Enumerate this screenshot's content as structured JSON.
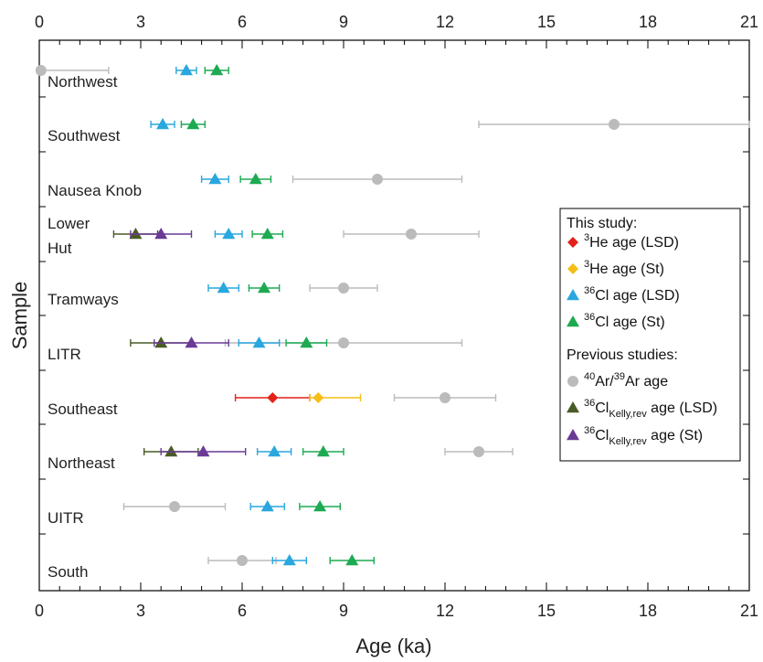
{
  "chart_data": {
    "type": "scatter",
    "xlabel": "Age (ka)",
    "ylabel": "Sample",
    "xlim": [
      0,
      21
    ],
    "xticks": [
      0,
      3,
      6,
      9,
      12,
      15,
      18,
      21
    ],
    "grid": false,
    "legend_placement": "right-center",
    "samples": [
      {
        "label": "Northwest",
        "label_lines": [
          "Northwest"
        ]
      },
      {
        "label": "Southwest",
        "label_lines": [
          "Southwest"
        ]
      },
      {
        "label": "Nausea Knob",
        "label_lines": [
          "Nausea Knob"
        ]
      },
      {
        "label": "Lower Hut",
        "label_lines": [
          "Lower",
          "Hut"
        ]
      },
      {
        "label": "Tramways",
        "label_lines": [
          "Tramways"
        ]
      },
      {
        "label": "LITR",
        "label_lines": [
          "LITR"
        ]
      },
      {
        "label": "Southeast",
        "label_lines": [
          "Southeast"
        ]
      },
      {
        "label": "Northeast",
        "label_lines": [
          "Northeast"
        ]
      },
      {
        "label": "UITR",
        "label_lines": [
          "UITR"
        ]
      },
      {
        "label": "South",
        "label_lines": [
          "South"
        ]
      }
    ],
    "legend": {
      "group1_title": "This study:",
      "group2_title": "Previous studies:",
      "entries": [
        {
          "key": "he_lsd",
          "sup": "3",
          "main": "He age (LSD)",
          "sub": "",
          "tail": ""
        },
        {
          "key": "he_st",
          "sup": "3",
          "main": "He age (St)",
          "sub": "",
          "tail": ""
        },
        {
          "key": "cl_lsd",
          "sup": "36",
          "main": "Cl age (LSD)",
          "sub": "",
          "tail": ""
        },
        {
          "key": "cl_st",
          "sup": "36",
          "main": "Cl age (St)",
          "sub": "",
          "tail": ""
        },
        {
          "key": "arar",
          "sup": "40",
          "main": "Ar/",
          "sup2": "39",
          "main2": "Ar age",
          "sub": "",
          "tail": ""
        },
        {
          "key": "kelly_lsd",
          "sup": "36",
          "main": "Cl",
          "sub": "Kelly,rev",
          "tail": " age (LSD)"
        },
        {
          "key": "kelly_st",
          "sup": "36",
          "main": "Cl",
          "sub": "Kelly,rev",
          "tail": " age (St)"
        }
      ]
    },
    "series": [
      {
        "key": "he_lsd",
        "marker": "diamond",
        "color": "#e32119",
        "points": [
          {
            "sample": "Southeast",
            "x": 6.9,
            "lo": 5.8,
            "hi": 8.0
          }
        ]
      },
      {
        "key": "he_st",
        "marker": "diamond",
        "color": "#f6bd16",
        "points": [
          {
            "sample": "Southeast",
            "x": 8.25,
            "lo": 8.0,
            "hi": 9.5
          }
        ]
      },
      {
        "key": "cl_lsd",
        "marker": "triangle",
        "color": "#29a7de",
        "points": [
          {
            "sample": "Northwest",
            "x": 4.35,
            "lo": 4.05,
            "hi": 4.65
          },
          {
            "sample": "Southwest",
            "x": 3.65,
            "lo": 3.3,
            "hi": 4.0
          },
          {
            "sample": "Nausea Knob",
            "x": 5.2,
            "lo": 4.8,
            "hi": 5.6
          },
          {
            "sample": "Lower Hut",
            "x": 5.6,
            "lo": 5.2,
            "hi": 6.0
          },
          {
            "sample": "Tramways",
            "x": 5.45,
            "lo": 5.0,
            "hi": 5.9
          },
          {
            "sample": "LITR",
            "x": 6.5,
            "lo": 5.9,
            "hi": 7.1
          },
          {
            "sample": "Northeast",
            "x": 6.95,
            "lo": 6.45,
            "hi": 7.45
          },
          {
            "sample": "UITR",
            "x": 6.75,
            "lo": 6.25,
            "hi": 7.25
          },
          {
            "sample": "South",
            "x": 7.4,
            "lo": 6.9,
            "hi": 7.9
          }
        ]
      },
      {
        "key": "cl_st",
        "marker": "triangle",
        "color": "#1daa52",
        "points": [
          {
            "sample": "Northwest",
            "x": 5.25,
            "lo": 4.9,
            "hi": 5.6
          },
          {
            "sample": "Southwest",
            "x": 4.55,
            "lo": 4.2,
            "hi": 4.9
          },
          {
            "sample": "Nausea Knob",
            "x": 6.4,
            "lo": 5.95,
            "hi": 6.85
          },
          {
            "sample": "Lower Hut",
            "x": 6.75,
            "lo": 6.3,
            "hi": 7.2
          },
          {
            "sample": "Tramways",
            "x": 6.65,
            "lo": 6.2,
            "hi": 7.1
          },
          {
            "sample": "LITR",
            "x": 7.9,
            "lo": 7.3,
            "hi": 8.5
          },
          {
            "sample": "Northeast",
            "x": 8.4,
            "lo": 7.8,
            "hi": 9.0
          },
          {
            "sample": "UITR",
            "x": 8.3,
            "lo": 7.7,
            "hi": 8.9
          },
          {
            "sample": "South",
            "x": 9.25,
            "lo": 8.6,
            "hi": 9.9
          }
        ]
      },
      {
        "key": "arar",
        "marker": "circle",
        "color": "#bbbbbb",
        "points": [
          {
            "sample": "Northwest",
            "x": 0.05,
            "lo": 0.0,
            "hi": 2.05
          },
          {
            "sample": "Southwest",
            "x": 17.0,
            "lo": 13.0,
            "hi": 21.0
          },
          {
            "sample": "Nausea Knob",
            "x": 10.0,
            "lo": 7.5,
            "hi": 12.5
          },
          {
            "sample": "Lower Hut",
            "x": 11.0,
            "lo": 9.0,
            "hi": 13.0
          },
          {
            "sample": "Tramways",
            "x": 9.0,
            "lo": 8.0,
            "hi": 10.0
          },
          {
            "sample": "LITR",
            "x": 9.0,
            "lo": 5.5,
            "hi": 12.5
          },
          {
            "sample": "Southeast",
            "x": 12.0,
            "lo": 10.5,
            "hi": 13.5
          },
          {
            "sample": "Northeast",
            "x": 13.0,
            "lo": 12.0,
            "hi": 14.0
          },
          {
            "sample": "UITR",
            "x": 4.0,
            "lo": 2.5,
            "hi": 5.5
          },
          {
            "sample": "South",
            "x": 6.0,
            "lo": 5.0,
            "hi": 7.0
          }
        ]
      },
      {
        "key": "kelly_lsd",
        "marker": "triangle",
        "color": "#4a5a26",
        "points": [
          {
            "sample": "Lower Hut",
            "x": 2.85,
            "lo": 2.2,
            "hi": 3.5
          },
          {
            "sample": "LITR",
            "x": 3.6,
            "lo": 2.7,
            "hi": 4.5
          },
          {
            "sample": "Northeast",
            "x": 3.9,
            "lo": 3.1,
            "hi": 4.7
          }
        ]
      },
      {
        "key": "kelly_st",
        "marker": "triangle",
        "color": "#6a3a96",
        "points": [
          {
            "sample": "Lower Hut",
            "x": 3.6,
            "lo": 2.7,
            "hi": 4.5
          },
          {
            "sample": "LITR",
            "x": 4.5,
            "lo": 3.4,
            "hi": 5.6
          },
          {
            "sample": "Northeast",
            "x": 4.85,
            "lo": 3.6,
            "hi": 6.1
          }
        ]
      }
    ]
  }
}
